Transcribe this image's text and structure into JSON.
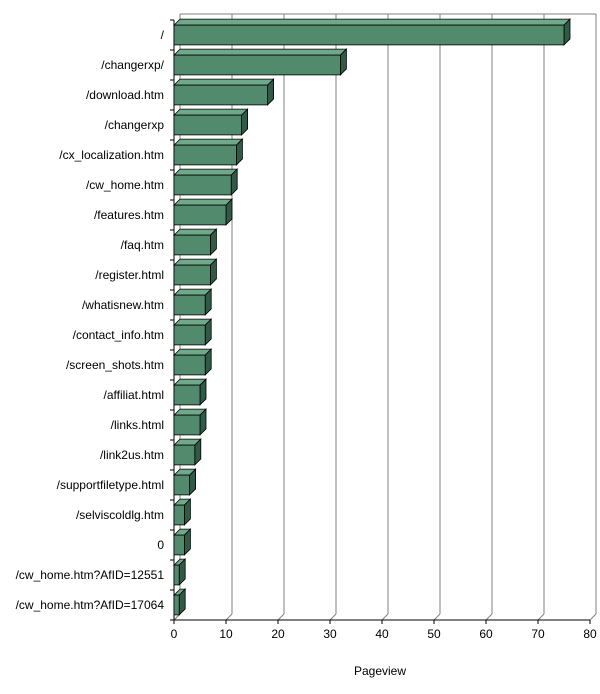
{
  "chart_data": {
    "type": "bar",
    "orientation": "horizontal",
    "title": "",
    "xlabel": "Pageview",
    "ylabel": "",
    "xlim": [
      0,
      80
    ],
    "x_ticks": [
      0,
      10,
      20,
      30,
      40,
      50,
      60,
      70,
      80
    ],
    "grid": true,
    "legend": "none",
    "categories": [
      "/",
      "/changerxp/",
      "/download.htm",
      "/changerxp",
      "/cx_localization.htm",
      "/cw_home.htm",
      "/features.htm",
      "/faq.htm",
      "/register.html",
      "/whatisnew.htm",
      "/contact_info.htm",
      "/screen_shots.htm",
      "/affiliat.html",
      "/links.html",
      "/link2us.htm",
      "/supportfiletype.html",
      "/selviscoldlg.htm",
      "0",
      "/cw_home.htm?AfID=12551",
      "/cw_home.htm?AfID=17064"
    ],
    "values": [
      75,
      32,
      18,
      13,
      12,
      11,
      10,
      7,
      7,
      6,
      6,
      6,
      5,
      5,
      4,
      3,
      2,
      2,
      1,
      1
    ],
    "colors": {
      "bar_front": "#528a6e",
      "bar_top": "#6fa98a",
      "bar_side": "#2f5a45",
      "grid": "#808080"
    }
  }
}
